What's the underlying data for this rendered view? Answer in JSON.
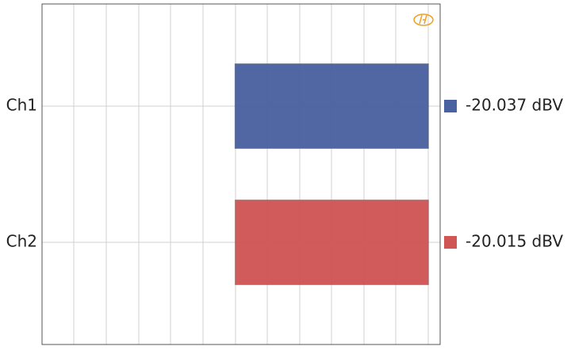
{
  "chart_data": {
    "type": "bar",
    "orientation": "horizontal",
    "categories": [
      "Ch1",
      "Ch2"
    ],
    "series": [
      {
        "name": "Ch1",
        "color": "#4a62a0"
      },
      {
        "name": "Ch2",
        "color": "#d05655"
      }
    ],
    "values": [
      -20.037,
      -20.015
    ],
    "value_labels": [
      "-20.037 dBV",
      "-20.015 dBV"
    ],
    "xlim": [
      -40,
      1.2
    ]
  }
}
